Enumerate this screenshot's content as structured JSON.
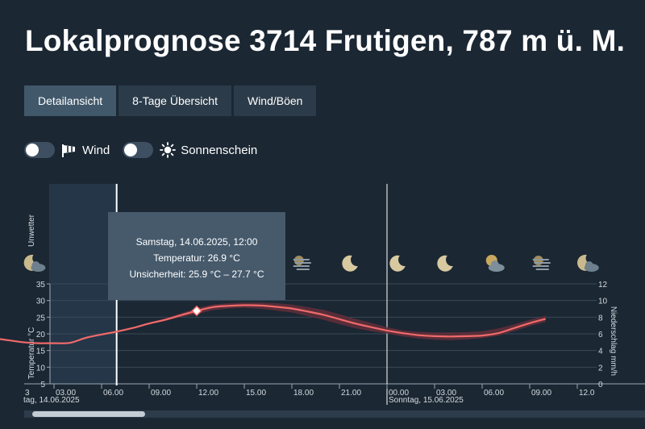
{
  "title": "Lokalprognose 3714 Frutigen, 787 m ü. M.",
  "tabs": [
    {
      "label": "Detailansicht",
      "active": true
    },
    {
      "label": "8-Tage Übersicht",
      "active": false
    },
    {
      "label": "Wind/Böen",
      "active": false
    }
  ],
  "toggles": {
    "wind_label": "Wind",
    "wind_icon": "windsock-icon",
    "sun_label": "Sonnenschein",
    "sun_icon": "sun-icon"
  },
  "tooltip": {
    "line1": "Samstag, 14.06.2025, 12:00",
    "line2": "Temperatur: 26.9 °C",
    "line3": "Unsicherheit: 25.9 °C – 27.7 °C"
  },
  "colors": {
    "background": "#1b2733",
    "temperature_line": "#f06a6a",
    "uncertainty_band": "#5e2f3a",
    "night_highlight": "#243648",
    "tab_active": "#41586b",
    "tab_inactive": "#2b3b49"
  },
  "chart_data": {
    "type": "line",
    "ylabel_left": "Temperatur °C",
    "ylabel_right": "Niederschlag mm/h",
    "row_label": "Unwetter",
    "yticks_left": [
      "5",
      "10",
      "15",
      "20",
      "25",
      "30",
      "35"
    ],
    "yticks_right": [
      "0",
      "2",
      "4",
      "6",
      "8",
      "10",
      "12"
    ],
    "ylim_left": [
      5,
      35
    ],
    "ylim_right": [
      0,
      12
    ],
    "xlim_hours": [
      -3.5,
      34.2
    ],
    "xticks": [
      {
        "label": "03.00",
        "hour": 3
      },
      {
        "label": "06.00",
        "hour": 6
      },
      {
        "label": "09.00",
        "hour": 9
      },
      {
        "label": "12.00",
        "hour": 12
      },
      {
        "label": "15.00",
        "hour": 15
      },
      {
        "label": "18.00",
        "hour": 18
      },
      {
        "label": "21.00",
        "hour": 21
      },
      {
        "label": "00.00",
        "hour": 24
      },
      {
        "label": "03.00",
        "hour": 27
      },
      {
        "label": "06.00",
        "hour": 30
      },
      {
        "label": "09.00",
        "hour": 33
      },
      {
        "label": "12.0",
        "hour": 36
      }
    ],
    "day_labels": [
      {
        "label": "tag, 14.06.2025",
        "hour": 0
      },
      {
        "label": "Sonntag, 15.06.2025",
        "hour": 24
      }
    ],
    "left_edge_tick": "3",
    "current_time_hour": 7,
    "day_boundary_hour": 24,
    "night_shade_hours": [
      0,
      4.5
    ],
    "weather_icons": [
      {
        "icon": "moon-cloud-icon",
        "hour": 1.8
      },
      {
        "icon": "fog-icon",
        "hour": 18.6
      },
      {
        "icon": "moon-icon",
        "hour": 21.7
      },
      {
        "icon": "moon-icon",
        "hour": 24.7
      },
      {
        "icon": "moon-icon",
        "hour": 27.7
      },
      {
        "icon": "sun-cloud-icon",
        "hour": 30.7
      },
      {
        "icon": "fog-icon",
        "hour": 33.7
      },
      {
        "icon": "moon-cloud-icon",
        "hour": 36.7
      }
    ],
    "highlight_point": {
      "hour": 12,
      "value": 26.9
    },
    "series": [
      {
        "x": [
          -3,
          -1,
          1,
          2,
          3,
          4,
          5,
          6,
          7,
          8,
          9,
          10,
          11,
          12,
          13,
          14,
          15,
          16,
          17,
          18,
          19,
          20,
          21,
          22,
          23,
          24,
          25,
          26,
          27,
          28,
          29,
          30,
          31,
          32,
          33,
          34
        ],
        "values": [
          19.6,
          18.8,
          17.5,
          17.2,
          17.2,
          17.3,
          18.8,
          19.8,
          20.7,
          21.8,
          23.1,
          24.2,
          25.6,
          26.9,
          28.0,
          28.4,
          28.6,
          28.5,
          28.1,
          27.6,
          26.7,
          25.7,
          24.4,
          23.1,
          22.0,
          21.0,
          20.2,
          19.6,
          19.3,
          19.2,
          19.3,
          19.5,
          20.2,
          21.7,
          23.2,
          24.5
        ],
        "lower": [
          19.6,
          18.8,
          17.5,
          17.2,
          17.2,
          17.3,
          18.8,
          19.8,
          20.6,
          21.6,
          22.8,
          23.9,
          25.0,
          25.9,
          27.1,
          27.6,
          27.8,
          27.5,
          27.0,
          26.4,
          25.3,
          24.2,
          22.9,
          21.7,
          20.8,
          20.1,
          19.2,
          18.6,
          18.2,
          18.1,
          18.3,
          18.7,
          19.4,
          20.8,
          22.3,
          23.6
        ],
        "upper": [
          19.6,
          18.8,
          17.5,
          17.2,
          17.2,
          17.3,
          18.8,
          19.8,
          20.8,
          22.0,
          23.4,
          24.6,
          26.2,
          27.7,
          28.8,
          29.2,
          29.4,
          29.4,
          29.2,
          28.8,
          28.0,
          27.2,
          25.9,
          24.5,
          23.3,
          22.0,
          21.0,
          20.6,
          20.4,
          20.4,
          20.5,
          20.8,
          21.6,
          22.8,
          24.2,
          25.5
        ]
      }
    ]
  }
}
